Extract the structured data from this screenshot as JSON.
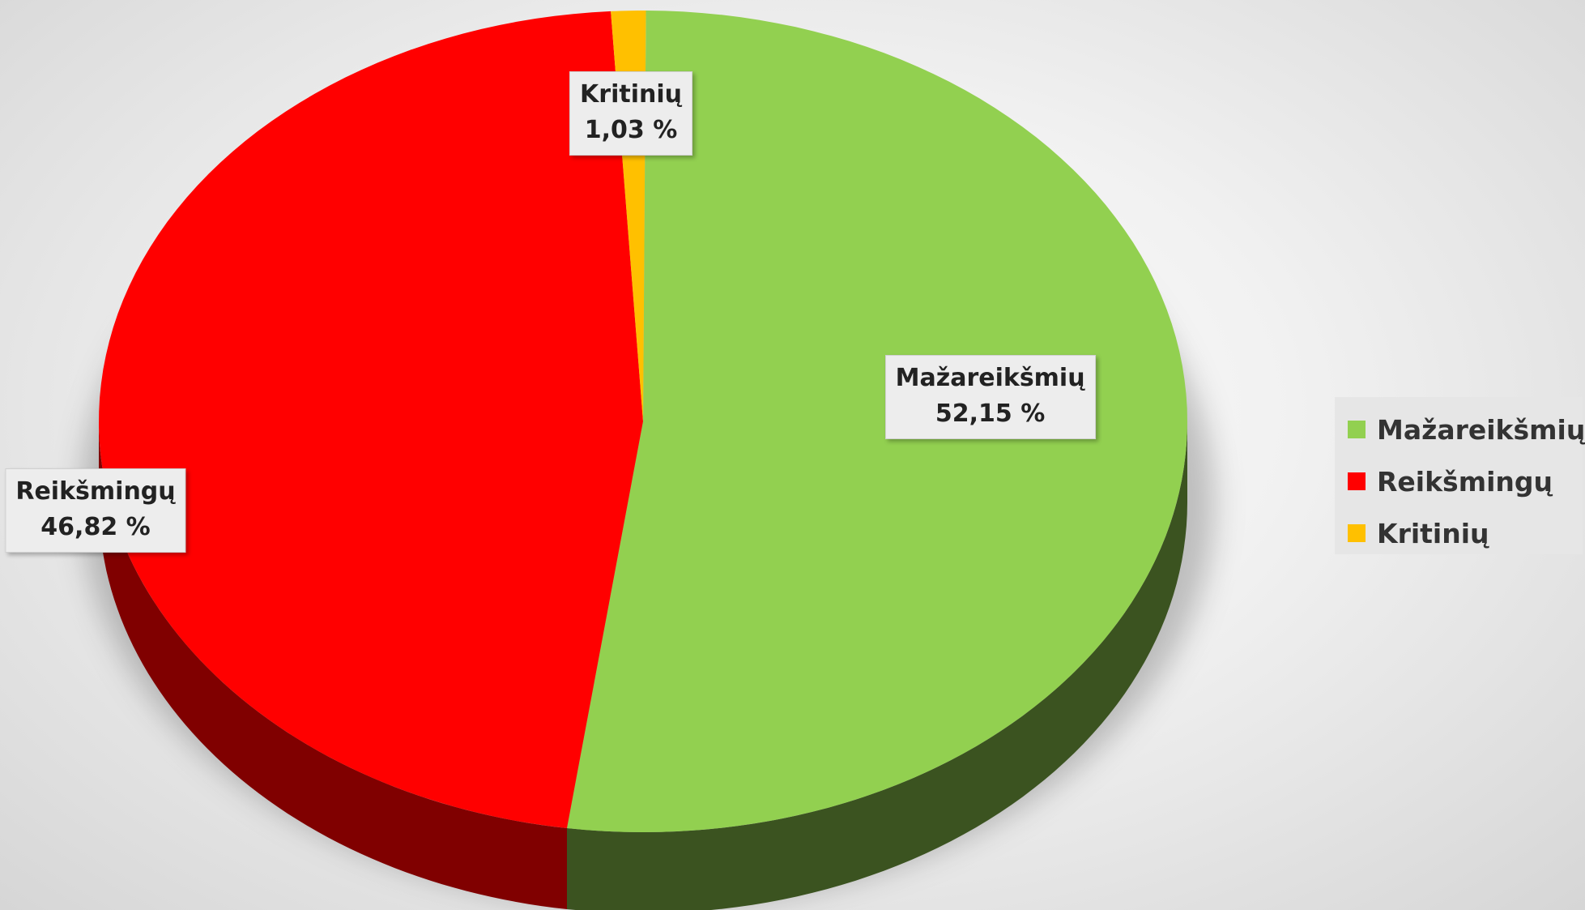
{
  "chart_data": {
    "type": "pie",
    "style": "3d",
    "title": "",
    "slices": [
      {
        "label": "Mažareikšmių",
        "value": 52.15,
        "value_label": "52,15 %",
        "color": "#92d050",
        "side_color": "#3b5320"
      },
      {
        "label": "Reikšmingų",
        "value": 46.82,
        "value_label": "46,82 %",
        "color": "#ff0000",
        "side_color": "#800000"
      },
      {
        "label": "Kritinių",
        "value": 1.03,
        "value_label": "1,03 %",
        "color": "#ffc000",
        "side_color": "#7f6000"
      }
    ],
    "legend": {
      "position": "right",
      "items": [
        "Mažareikšmių",
        "Reikšmingų",
        "Kritinių"
      ]
    }
  }
}
